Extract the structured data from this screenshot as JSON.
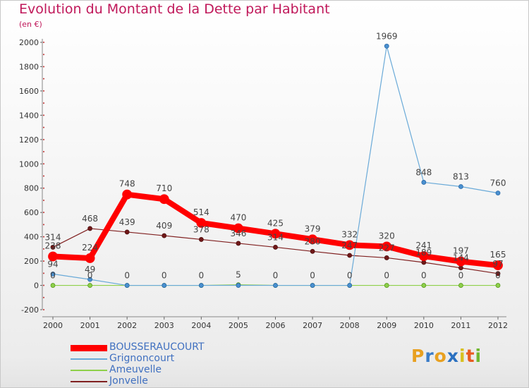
{
  "title": "Evolution du Montant de la Dette par Habitant",
  "subtitle": "(en €)",
  "logo": {
    "letters": [
      "P",
      "r",
      "o",
      "x",
      "i",
      "t",
      "i"
    ],
    "colors": [
      "#e8a020",
      "#3a7cc8",
      "#e8a020",
      "#2a70c0",
      "#d8c020",
      "#e85a20",
      "#70b830"
    ]
  },
  "chart_data": {
    "type": "line",
    "title": "Evolution du Montant de la Dette par Habitant",
    "subtitle": "(en €)",
    "x": [
      "2000",
      "2001",
      "2002",
      "2003",
      "2004",
      "2005",
      "2006",
      "2007",
      "2008",
      "2009",
      "2010",
      "2011",
      "2012"
    ],
    "ylim": [
      -200,
      2000
    ],
    "yticks": [
      "-200",
      "0",
      "200",
      "400",
      "600",
      "800",
      "1000",
      "1200",
      "1400",
      "1600",
      "1800",
      "2000"
    ],
    "grid": false,
    "legend": "bottom-left",
    "series": [
      {
        "name": "BOUSSERAUCOURT",
        "color": "#ff0000",
        "values": [
          238,
          224,
          748,
          710,
          514,
          470,
          425,
          379,
          332,
          320,
          241,
          197,
          165
        ],
        "labels": [
          "238",
          "224",
          "748",
          "710",
          "514",
          "470",
          "425",
          "379",
          "332",
          "320",
          "241",
          "197",
          "165"
        ]
      },
      {
        "name": "Grignoncourt",
        "color": "#6aaad8",
        "values": [
          94,
          49,
          0,
          0,
          0,
          0,
          0,
          0,
          0,
          1969,
          848,
          813,
          760
        ],
        "labels": [
          "94",
          "49",
          "0",
          "0",
          "0",
          "0",
          "0",
          "0",
          "0",
          "1969",
          "848",
          "813",
          "760"
        ]
      },
      {
        "name": "Ameuvelle",
        "color": "#8ed04a",
        "values": [
          0,
          0,
          0,
          0,
          0,
          5,
          0,
          0,
          0,
          0,
          0,
          0,
          0
        ],
        "labels": [
          "0",
          "0",
          "0",
          "0",
          "0",
          "5",
          "0",
          "0",
          "0",
          "0",
          "0",
          "0",
          "0"
        ]
      },
      {
        "name": "Jonvelle",
        "color": "#802020",
        "values": [
          314,
          468,
          439,
          409,
          378,
          346,
          314,
          280,
          247,
          227,
          189,
          144,
          97
        ],
        "labels": [
          "314",
          "468",
          "439",
          "409",
          "378",
          "346",
          "314",
          "280",
          "247",
          "227",
          "189",
          "144",
          "97"
        ]
      }
    ]
  }
}
